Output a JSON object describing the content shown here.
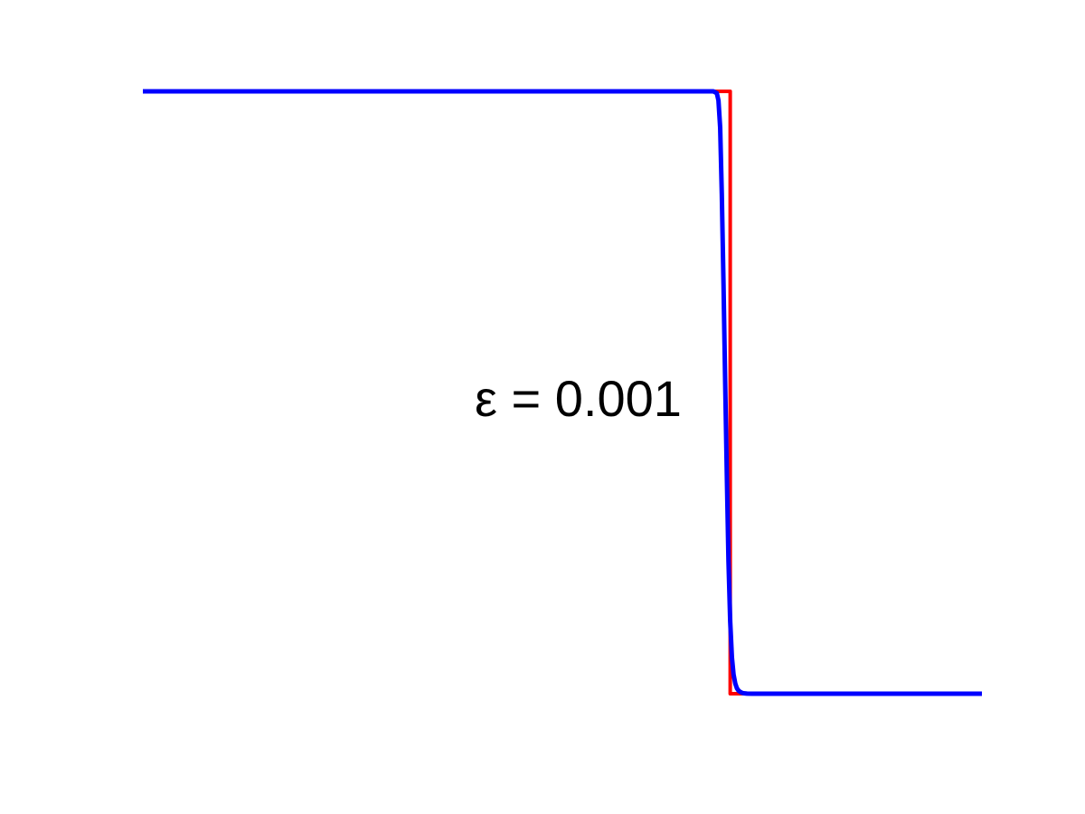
{
  "chart_data": {
    "type": "line",
    "title": "",
    "xlabel": "",
    "ylabel": "",
    "xlim": [
      0,
      1
    ],
    "ylim": [
      0,
      1
    ],
    "axes_visible": false,
    "grid": false,
    "annotation": "ε = 0.001",
    "colors": {
      "series1": "#ff0000",
      "series2": "#0000ff"
    },
    "series": [
      {
        "x": [
          0,
          0.7,
          0.7,
          1.0
        ],
        "y": [
          1,
          1,
          0,
          0
        ]
      },
      {
        "x": [
          0,
          0.68,
          0.684,
          0.686,
          0.688,
          0.69,
          0.692,
          0.694,
          0.696,
          0.698,
          0.7,
          0.702,
          0.704,
          0.706,
          0.708,
          0.71,
          0.712,
          0.714,
          0.716,
          0.72,
          0.726,
          1.0
        ],
        "y": [
          1,
          1.0,
          0.997,
          0.985,
          0.94,
          0.83,
          0.68,
          0.52,
          0.36,
          0.22,
          0.12,
          0.06,
          0.032,
          0.017,
          0.009,
          0.005,
          0.003,
          0.0015,
          0.0008,
          0.0002,
          0.0,
          0.0
        ]
      }
    ]
  }
}
